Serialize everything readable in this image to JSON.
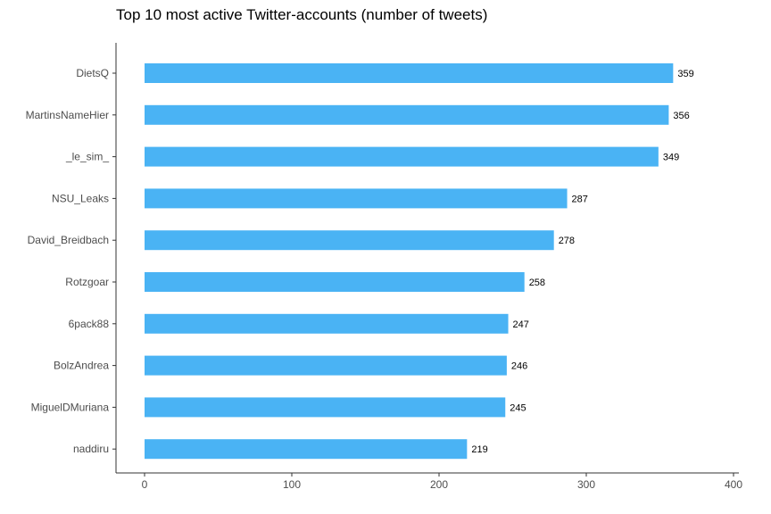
{
  "chart_data": {
    "type": "bar",
    "orientation": "horizontal",
    "title": "Top 10 most active Twitter-accounts (number of tweets)",
    "xlabel": "",
    "ylabel": "",
    "categories": [
      "DietsQ",
      "MartinsNameHier",
      "_le_sim_",
      "NSU_Leaks",
      "David_Breidbach",
      "Rotzgoar",
      "6pack88",
      "BolzAndrea",
      "MiguelDMuriana",
      "naddiru"
    ],
    "values": [
      359,
      356,
      349,
      287,
      278,
      258,
      247,
      246,
      245,
      219
    ],
    "xlim": [
      0,
      400
    ],
    "xticks": [
      "0",
      "100",
      "200",
      "300",
      "400"
    ],
    "bar_color": "#4ab3f4",
    "grid": false,
    "show_value_labels": true
  }
}
